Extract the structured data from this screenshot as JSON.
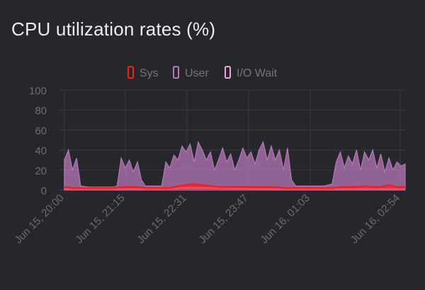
{
  "panel": {
    "title": "CPU utilization rates (%)"
  },
  "colors": {
    "background": "#25272b",
    "grid": "#3a3c40",
    "tick_text": "#6b6d71",
    "legend_text": "#737579",
    "sys": "#ff1a1a",
    "user": "#b678b8",
    "io_wait": "#e7a6df"
  },
  "chart_data": {
    "type": "area",
    "title": "CPU utilization rates (%)",
    "xlabel": "",
    "ylabel": "",
    "ylim": [
      0,
      100
    ],
    "yticks": [
      0,
      20,
      40,
      60,
      80,
      100
    ],
    "grid": true,
    "legend_position": "top-center",
    "xrange": [
      "2024-06-15T19:54:00",
      "2024-06-16T03:00:00"
    ],
    "xtick_labels": [
      "Jun 15, 20:00",
      "Jun 15, 21:15",
      "Jun 15, 22:31",
      "Jun 15, 23:47",
      "Jun 16, 01:03",
      "Jun 16, 02:54"
    ],
    "xtick_times": [
      "2024-06-15T20:00:00",
      "2024-06-15T21:15:00",
      "2024-06-15T22:31:00",
      "2024-06-15T23:47:00",
      "2024-06-16T01:03:00",
      "2024-06-16T02:54:00"
    ],
    "series": [
      {
        "name": "Sys",
        "color": "#ff1a1a",
        "points": [
          [
            "2024-06-15T20:00:00",
            3
          ],
          [
            "2024-06-15T20:10:00",
            2
          ],
          [
            "2024-06-15T20:20:00",
            2
          ],
          [
            "2024-06-15T20:30:00",
            2
          ],
          [
            "2024-06-15T20:40:00",
            2
          ],
          [
            "2024-06-15T20:50:00",
            2
          ],
          [
            "2024-06-15T21:00:00",
            2
          ],
          [
            "2024-06-15T21:10:00",
            3
          ],
          [
            "2024-06-15T21:20:00",
            3
          ],
          [
            "2024-06-15T21:30:00",
            3
          ],
          [
            "2024-06-15T21:40:00",
            2
          ],
          [
            "2024-06-15T21:50:00",
            2
          ],
          [
            "2024-06-15T22:00:00",
            2
          ],
          [
            "2024-06-15T22:10:00",
            2
          ],
          [
            "2024-06-15T22:20:00",
            4
          ],
          [
            "2024-06-15T22:30:00",
            5
          ],
          [
            "2024-06-15T22:40:00",
            6
          ],
          [
            "2024-06-15T22:50:00",
            5
          ],
          [
            "2024-06-15T23:00:00",
            4
          ],
          [
            "2024-06-15T23:10:00",
            3
          ],
          [
            "2024-06-15T23:20:00",
            3
          ],
          [
            "2024-06-15T23:30:00",
            3
          ],
          [
            "2024-06-15T23:40:00",
            3
          ],
          [
            "2024-06-15T23:50:00",
            3
          ],
          [
            "2024-06-16T00:00:00",
            3
          ],
          [
            "2024-06-16T00:10:00",
            3
          ],
          [
            "2024-06-16T00:20:00",
            3
          ],
          [
            "2024-06-16T00:30:00",
            2
          ],
          [
            "2024-06-16T00:40:00",
            2
          ],
          [
            "2024-06-16T00:50:00",
            2
          ],
          [
            "2024-06-16T01:00:00",
            2
          ],
          [
            "2024-06-16T01:10:00",
            2
          ],
          [
            "2024-06-16T01:20:00",
            2
          ],
          [
            "2024-06-16T01:30:00",
            2
          ],
          [
            "2024-06-16T01:40:00",
            3
          ],
          [
            "2024-06-16T01:50:00",
            3
          ],
          [
            "2024-06-16T02:00:00",
            3
          ],
          [
            "2024-06-16T02:10:00",
            4
          ],
          [
            "2024-06-16T02:20:00",
            3
          ],
          [
            "2024-06-16T02:30:00",
            3
          ],
          [
            "2024-06-16T02:40:00",
            5
          ],
          [
            "2024-06-16T02:50:00",
            3
          ],
          [
            "2024-06-16T03:00:00",
            3
          ]
        ]
      },
      {
        "name": "User",
        "color": "#b678b8",
        "points": [
          [
            "2024-06-15T20:00:00",
            30
          ],
          [
            "2024-06-15T20:05:00",
            40
          ],
          [
            "2024-06-15T20:10:00",
            20
          ],
          [
            "2024-06-15T20:15:00",
            32
          ],
          [
            "2024-06-15T20:20:00",
            4
          ],
          [
            "2024-06-15T20:30:00",
            3
          ],
          [
            "2024-06-15T20:40:00",
            3
          ],
          [
            "2024-06-15T20:50:00",
            3
          ],
          [
            "2024-06-15T21:00:00",
            3
          ],
          [
            "2024-06-15T21:05:00",
            4
          ],
          [
            "2024-06-15T21:10:00",
            32
          ],
          [
            "2024-06-15T21:15:00",
            22
          ],
          [
            "2024-06-15T21:20:00",
            30
          ],
          [
            "2024-06-15T21:25:00",
            18
          ],
          [
            "2024-06-15T21:30:00",
            28
          ],
          [
            "2024-06-15T21:35:00",
            10
          ],
          [
            "2024-06-15T21:40:00",
            4
          ],
          [
            "2024-06-15T21:50:00",
            4
          ],
          [
            "2024-06-15T22:00:00",
            4
          ],
          [
            "2024-06-15T22:05:00",
            28
          ],
          [
            "2024-06-15T22:10:00",
            22
          ],
          [
            "2024-06-15T22:15:00",
            35
          ],
          [
            "2024-06-15T22:20:00",
            30
          ],
          [
            "2024-06-15T22:25:00",
            44
          ],
          [
            "2024-06-15T22:30:00",
            38
          ],
          [
            "2024-06-15T22:35:00",
            46
          ],
          [
            "2024-06-15T22:40:00",
            28
          ],
          [
            "2024-06-15T22:45:00",
            48
          ],
          [
            "2024-06-15T22:50:00",
            40
          ],
          [
            "2024-06-15T22:55:00",
            30
          ],
          [
            "2024-06-15T23:00:00",
            38
          ],
          [
            "2024-06-15T23:05:00",
            20
          ],
          [
            "2024-06-15T23:10:00",
            30
          ],
          [
            "2024-06-15T23:15:00",
            42
          ],
          [
            "2024-06-15T23:20:00",
            28
          ],
          [
            "2024-06-15T23:25:00",
            36
          ],
          [
            "2024-06-15T23:30:00",
            20
          ],
          [
            "2024-06-15T23:35:00",
            30
          ],
          [
            "2024-06-15T23:40:00",
            42
          ],
          [
            "2024-06-15T23:45:00",
            32
          ],
          [
            "2024-06-15T23:50:00",
            38
          ],
          [
            "2024-06-15T23:55:00",
            26
          ],
          [
            "2024-06-16T00:00:00",
            40
          ],
          [
            "2024-06-16T00:05:00",
            48
          ],
          [
            "2024-06-16T00:10:00",
            30
          ],
          [
            "2024-06-16T00:15:00",
            44
          ],
          [
            "2024-06-16T00:20:00",
            30
          ],
          [
            "2024-06-16T00:25:00",
            40
          ],
          [
            "2024-06-16T00:30:00",
            20
          ],
          [
            "2024-06-16T00:35:00",
            42
          ],
          [
            "2024-06-16T00:40:00",
            10
          ],
          [
            "2024-06-16T00:45:00",
            4
          ],
          [
            "2024-06-16T00:50:00",
            4
          ],
          [
            "2024-06-16T01:00:00",
            4
          ],
          [
            "2024-06-16T01:10:00",
            4
          ],
          [
            "2024-06-16T01:20:00",
            4
          ],
          [
            "2024-06-16T01:30:00",
            6
          ],
          [
            "2024-06-16T01:35:00",
            28
          ],
          [
            "2024-06-16T01:40:00",
            38
          ],
          [
            "2024-06-16T01:45:00",
            22
          ],
          [
            "2024-06-16T01:50:00",
            34
          ],
          [
            "2024-06-16T01:55:00",
            26
          ],
          [
            "2024-06-16T02:00:00",
            40
          ],
          [
            "2024-06-16T02:05:00",
            20
          ],
          [
            "2024-06-16T02:10:00",
            38
          ],
          [
            "2024-06-16T02:15:00",
            30
          ],
          [
            "2024-06-16T02:20:00",
            40
          ],
          [
            "2024-06-16T02:25:00",
            22
          ],
          [
            "2024-06-16T02:30:00",
            36
          ],
          [
            "2024-06-16T02:35:00",
            18
          ],
          [
            "2024-06-16T02:40:00",
            32
          ],
          [
            "2024-06-16T02:45:00",
            20
          ],
          [
            "2024-06-16T02:50:00",
            28
          ],
          [
            "2024-06-16T02:55:00",
            24
          ],
          [
            "2024-06-16T03:00:00",
            26
          ]
        ]
      },
      {
        "name": "I/O Wait",
        "color": "#e7a6df",
        "points": [
          [
            "2024-06-15T20:00:00",
            1
          ],
          [
            "2024-06-15T21:00:00",
            1
          ],
          [
            "2024-06-15T22:00:00",
            1
          ],
          [
            "2024-06-15T22:30:00",
            2
          ],
          [
            "2024-06-15T23:00:00",
            2
          ],
          [
            "2024-06-16T00:00:00",
            1
          ],
          [
            "2024-06-16T01:00:00",
            1
          ],
          [
            "2024-06-16T02:00:00",
            1
          ],
          [
            "2024-06-16T03:00:00",
            1
          ]
        ]
      }
    ]
  }
}
